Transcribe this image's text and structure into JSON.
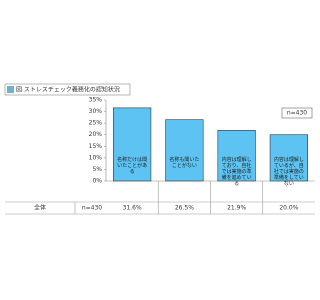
{
  "chart_data": {
    "type": "bar",
    "title": "図 ストレスチェック義務化の認知状況",
    "categories": [
      "名称だけは聞いたことがある",
      "名称も聞いたことがない",
      "内容は理解しており、自社では実施の準備を進めている",
      "内容は理解しているが、自社では実施の準備をしていない"
    ],
    "values": [
      31.6,
      26.5,
      21.9,
      20.0
    ],
    "value_labels": [
      "31.6%",
      "26.5%",
      "21.9%",
      "20.0%"
    ],
    "color": "#5cc3f2",
    "row_label": "全体",
    "sample_size": "n=430",
    "ylim": [
      0,
      35
    ],
    "yticks": [
      {
        "value": 0,
        "label": "0%"
      },
      {
        "value": 5,
        "label": "5%"
      },
      {
        "value": 10,
        "label": "10%"
      },
      {
        "value": 15,
        "label": "15%"
      },
      {
        "value": 20,
        "label": "20%"
      },
      {
        "value": 25,
        "label": "25%"
      },
      {
        "value": 30,
        "label": "30%"
      },
      {
        "value": 35,
        "label": "35%"
      }
    ],
    "grid": false
  }
}
